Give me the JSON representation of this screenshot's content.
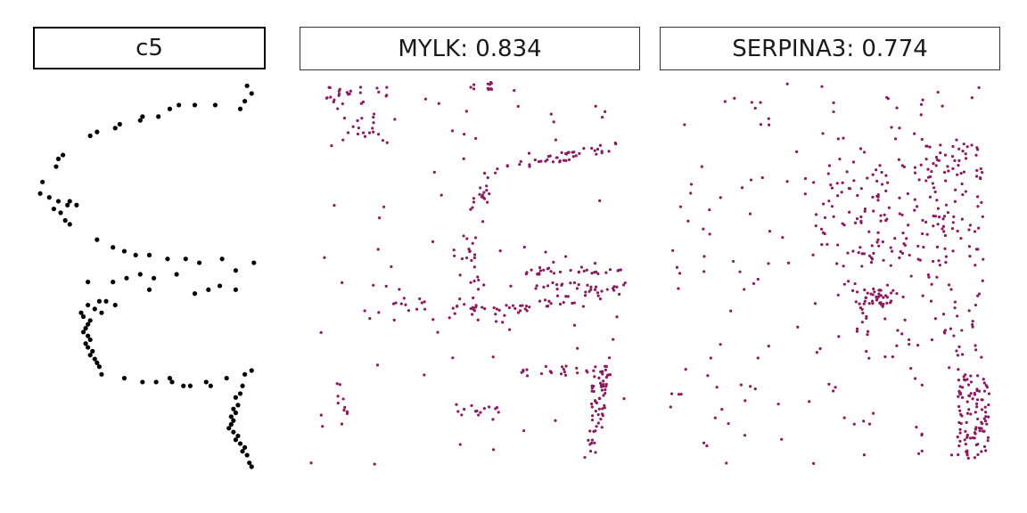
{
  "chart_data": [
    {
      "type": "scatter",
      "title": "c5",
      "color": "#000000",
      "point_radius_class": "large",
      "xlim": [
        0,
        100
      ],
      "ylim": [
        0,
        100
      ],
      "grid": false,
      "legend": "none",
      "points": [
        [
          93,
          99
        ],
        [
          95,
          97
        ],
        [
          92,
          95
        ],
        [
          90,
          93
        ],
        [
          79,
          94
        ],
        [
          70,
          94
        ],
        [
          63,
          94
        ],
        [
          59,
          93
        ],
        [
          54,
          91
        ],
        [
          47,
          91
        ],
        [
          46,
          90
        ],
        [
          37,
          89
        ],
        [
          35,
          88
        ],
        [
          27,
          87
        ],
        [
          24,
          86
        ],
        [
          12,
          81
        ],
        [
          10,
          80
        ],
        [
          9,
          78
        ],
        [
          3,
          74
        ],
        [
          2,
          71
        ],
        [
          6,
          70
        ],
        [
          10,
          69
        ],
        [
          15,
          69
        ],
        [
          18,
          68
        ],
        [
          14,
          68
        ],
        [
          8,
          67
        ],
        [
          11,
          66
        ],
        [
          13,
          64
        ],
        [
          15,
          63
        ],
        [
          27,
          59
        ],
        [
          34,
          57
        ],
        [
          39,
          56
        ],
        [
          44,
          55
        ],
        [
          50,
          55
        ],
        [
          58,
          54
        ],
        [
          66,
          54
        ],
        [
          72,
          53
        ],
        [
          82,
          54
        ],
        [
          96,
          53
        ],
        [
          88,
          51
        ],
        [
          62,
          50
        ],
        [
          46,
          50
        ],
        [
          40,
          49
        ],
        [
          52,
          49
        ],
        [
          34,
          48
        ],
        [
          23,
          48
        ],
        [
          81,
          47
        ],
        [
          50,
          46
        ],
        [
          70,
          45
        ],
        [
          88,
          46
        ],
        [
          76,
          46
        ],
        [
          31,
          43
        ],
        [
          28,
          43
        ],
        [
          35,
          42
        ],
        [
          23,
          42
        ],
        [
          26,
          41
        ],
        [
          20,
          40
        ],
        [
          29,
          40
        ],
        [
          21,
          39
        ],
        [
          24,
          38
        ],
        [
          23,
          37
        ],
        [
          22,
          36
        ],
        [
          21,
          35
        ],
        [
          23,
          34
        ],
        [
          24,
          33
        ],
        [
          22,
          32
        ],
        [
          23,
          31
        ],
        [
          25,
          30
        ],
        [
          24,
          29
        ],
        [
          26,
          28
        ],
        [
          27,
          27
        ],
        [
          28,
          26
        ],
        [
          29,
          24
        ],
        [
          39,
          23
        ],
        [
          47,
          22
        ],
        [
          53,
          22
        ],
        [
          59,
          23
        ],
        [
          60,
          22
        ],
        [
          65,
          21
        ],
        [
          68,
          21
        ],
        [
          75,
          22
        ],
        [
          77,
          21
        ],
        [
          84,
          23
        ],
        [
          92,
          24
        ],
        [
          95,
          25
        ],
        [
          91,
          21
        ],
        [
          90,
          19
        ],
        [
          88,
          18
        ],
        [
          89,
          16
        ],
        [
          87,
          15
        ],
        [
          88,
          14
        ],
        [
          86,
          13
        ],
        [
          87,
          12
        ],
        [
          86,
          11
        ],
        [
          85,
          10
        ],
        [
          87,
          9
        ],
        [
          89,
          8
        ],
        [
          88,
          7
        ],
        [
          90,
          6
        ],
        [
          92,
          5
        ],
        [
          91,
          4
        ],
        [
          93,
          3
        ],
        [
          94,
          1
        ],
        [
          95,
          0
        ]
      ]
    },
    {
      "type": "scatter",
      "title": "MYLK: 0.834",
      "color": "#8b1a5e",
      "point_radius_class": "small",
      "xlim": [
        0,
        100
      ],
      "ylim": [
        0,
        100
      ],
      "grid": false,
      "legend": "none",
      "seed": 83401
    },
    {
      "type": "scatter",
      "title": "SERPINA3: 0.774",
      "color": "#8b1a5e",
      "point_radius_class": "small",
      "xlim": [
        0,
        100
      ],
      "ylim": [
        0,
        100
      ],
      "grid": false,
      "legend": "none",
      "seed": 77402
    }
  ]
}
